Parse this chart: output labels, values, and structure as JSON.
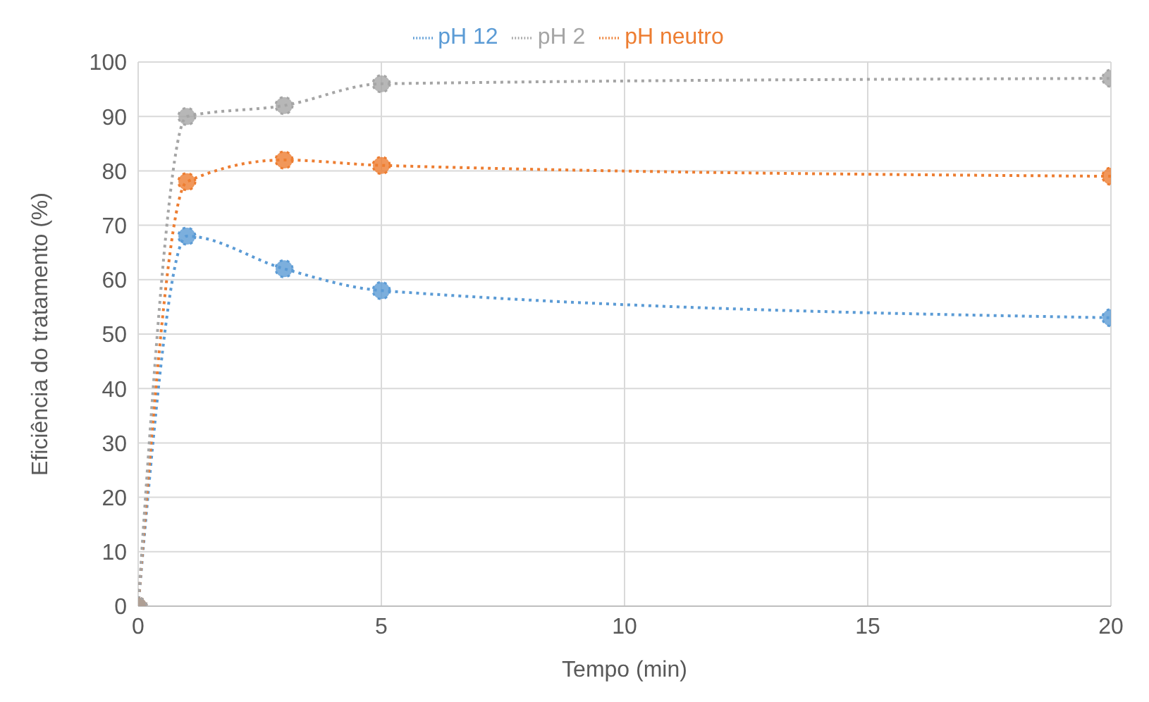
{
  "chart_data": {
    "type": "line",
    "xlabel": "Tempo (min)",
    "ylabel": "Eficiência do tratamento (%)",
    "x": [
      0,
      1,
      3,
      5,
      20
    ],
    "series": [
      {
        "name": "pH 12",
        "color": "#5b9bd5",
        "values": [
          0,
          68,
          62,
          58,
          53
        ]
      },
      {
        "name": "pH neutro",
        "color": "#ed7d31",
        "values": [
          0,
          78,
          82,
          81,
          79
        ]
      },
      {
        "name": "pH 2",
        "color": "#a5a5a5",
        "values": [
          0,
          90,
          92,
          96,
          97
        ]
      }
    ],
    "xlim": [
      0,
      20
    ],
    "xticks": [
      0,
      5,
      10,
      15,
      20
    ],
    "ylim": [
      0,
      100
    ],
    "yticks": [
      0,
      10,
      20,
      30,
      40,
      50,
      60,
      70,
      80,
      90,
      100
    ],
    "grid": true,
    "legend": "top",
    "marker": "circle",
    "line_style": "dotted"
  }
}
